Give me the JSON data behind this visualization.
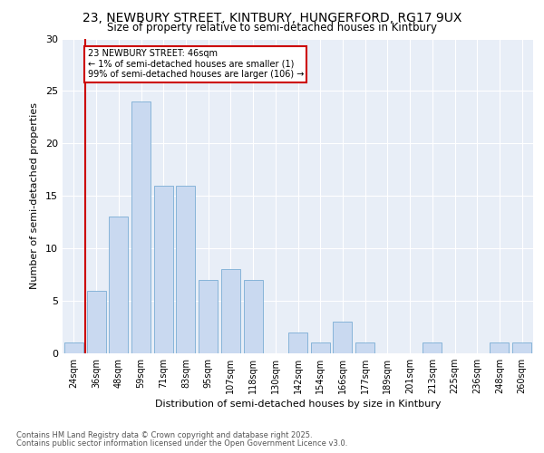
{
  "title_line1": "23, NEWBURY STREET, KINTBURY, HUNGERFORD, RG17 9UX",
  "title_line2": "Size of property relative to semi-detached houses in Kintbury",
  "xlabel": "Distribution of semi-detached houses by size in Kintbury",
  "ylabel": "Number of semi-detached properties",
  "categories": [
    "24sqm",
    "36sqm",
    "48sqm",
    "59sqm",
    "71sqm",
    "83sqm",
    "95sqm",
    "107sqm",
    "118sqm",
    "130sqm",
    "142sqm",
    "154sqm",
    "166sqm",
    "177sqm",
    "189sqm",
    "201sqm",
    "213sqm",
    "225sqm",
    "236sqm",
    "248sqm",
    "260sqm"
  ],
  "values": [
    1,
    6,
    13,
    24,
    16,
    16,
    7,
    8,
    7,
    0,
    2,
    1,
    3,
    1,
    0,
    0,
    1,
    0,
    0,
    1,
    1
  ],
  "bar_color": "#c9d9f0",
  "bar_edge_color": "#7aadd4",
  "annotation_text": "23 NEWBURY STREET: 46sqm\n← 1% of semi-detached houses are smaller (1)\n99% of semi-detached houses are larger (106) →",
  "annotation_box_color": "#ffffff",
  "annotation_box_edge_color": "#cc0000",
  "vline_color": "#cc0000",
  "ylim": [
    0,
    30
  ],
  "yticks": [
    0,
    5,
    10,
    15,
    20,
    25,
    30
  ],
  "bg_color": "#e8eef7",
  "footer_line1": "Contains HM Land Registry data © Crown copyright and database right 2025.",
  "footer_line2": "Contains public sector information licensed under the Open Government Licence v3.0."
}
